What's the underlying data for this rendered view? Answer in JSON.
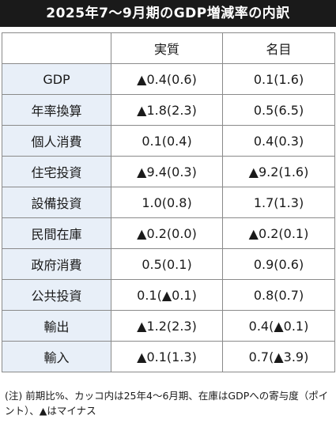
{
  "title": "2025年7～9月期のGDP増減率の内訳",
  "table": {
    "headers": [
      "",
      "実質",
      "名目"
    ],
    "rows": [
      {
        "label": "GDP",
        "real": "▲0.4(0.6)",
        "nominal": "0.1(1.6)"
      },
      {
        "label": "年率換算",
        "real": "▲1.8(2.3)",
        "nominal": "0.5(6.5)"
      },
      {
        "label": "個人消費",
        "real": "0.1(0.4)",
        "nominal": "0.4(0.3)"
      },
      {
        "label": "住宅投資",
        "real": "▲9.4(0.3)",
        "nominal": "▲9.2(1.6)"
      },
      {
        "label": "設備投資",
        "real": "1.0(0.8)",
        "nominal": "1.7(1.3)"
      },
      {
        "label": "民間在庫",
        "real": "▲0.2(0.0)",
        "nominal": "▲0.2(0.1)"
      },
      {
        "label": "政府消費",
        "real": "0.5(0.1)",
        "nominal": "0.9(0.6)"
      },
      {
        "label": "公共投資",
        "real": "0.1(▲0.1)",
        "nominal": "0.8(0.7)"
      },
      {
        "label": "輸出",
        "real": "▲1.2(2.3)",
        "nominal": "0.4(▲0.1)"
      },
      {
        "label": "輸入",
        "real": "▲0.1(1.3)",
        "nominal": "0.7(▲3.9)"
      }
    ]
  },
  "note": "(注) 前期比%、カッコ内は25年4～6月期、在庫はGDPへの寄与度（ポイント）、▲はマイナス",
  "colors": {
    "title_bg": "#1a1a1a",
    "title_text": "#ffffff",
    "row_label_bg": "#e8eff8",
    "border": "#8a8a8a"
  }
}
